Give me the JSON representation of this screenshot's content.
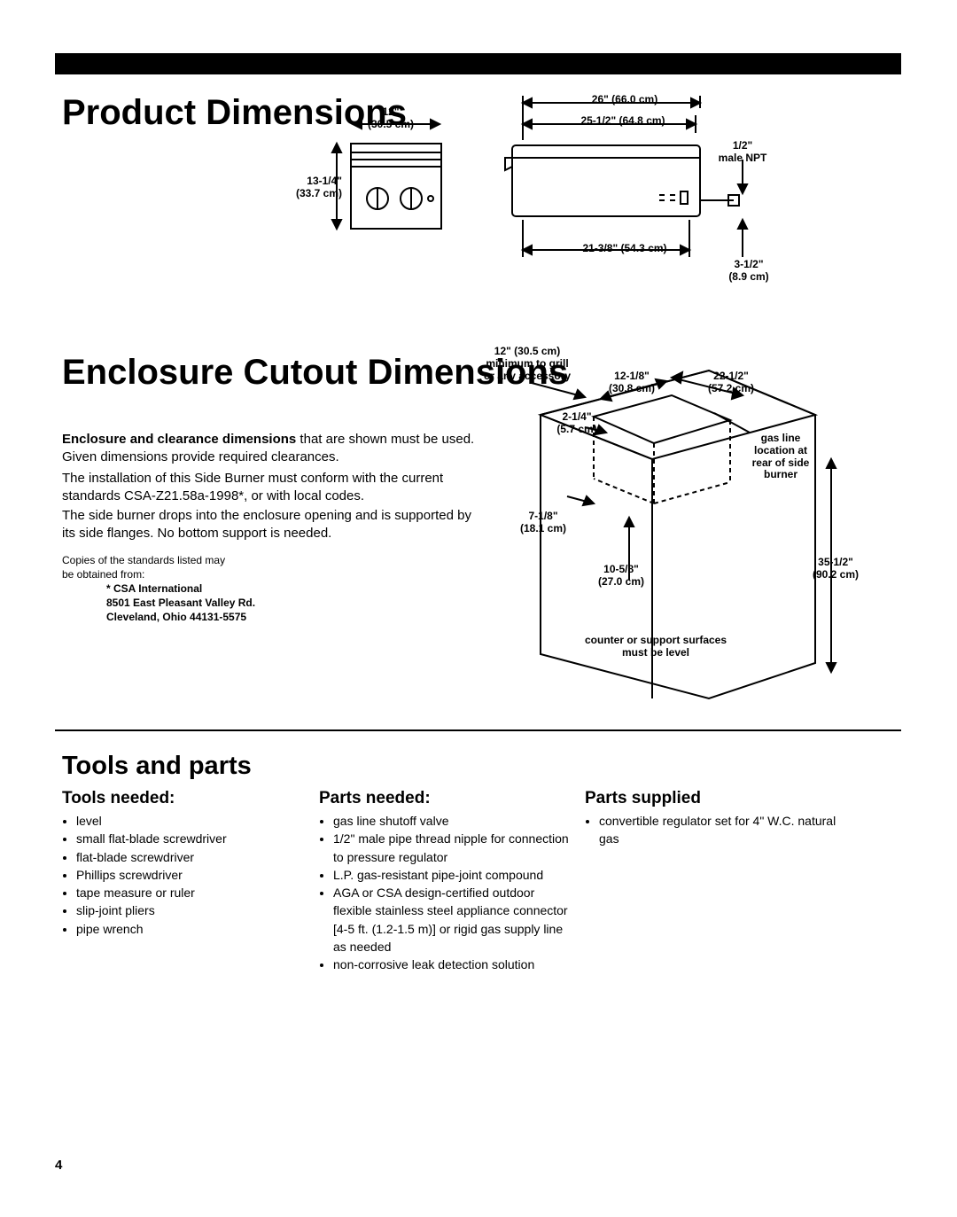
{
  "page_number": "4",
  "section1": {
    "title": "Product Dimensions",
    "diag_top": {
      "w_in": "12\"",
      "w_cm": "(30.5 cm)",
      "h_in": "13-1/4\"",
      "h_cm": "(33.7 cm)"
    },
    "diag_side": {
      "top_in": "26\" (66.0 cm)",
      "mid_in": "25-1/2\" (64.8 cm)",
      "bot_in": "21-3/8\" (54.3 cm)",
      "npt1": "1/2\"",
      "npt2": "male NPT",
      "gap_in": "3-1/2\"",
      "gap_cm": "(8.9 cm)"
    }
  },
  "section2": {
    "title": "Enclosure Cutout Dimensions",
    "p1_bold": "Enclosure and clearance dimensions",
    "p1_rest": " that are shown must be used. Given dimensions provide required clearances.",
    "p2": "The installation of this Side Burner must conform with the current standards CSA-Z21.58a-1998*, or with local codes.",
    "p3": "The side burner drops into the enclosure opening and is supported by its side flanges. No bottom support is needed.",
    "copies1": "Copies of the standards listed may",
    "copies2": "be obtained from:",
    "addr1": "* CSA International",
    "addr2": "8501 East Pleasant Valley Rd.",
    "addr3": "Cleveland, Ohio 44131-5575",
    "diag": {
      "min1": "12\" (30.5 cm)",
      "min2": "minimum to grill",
      "min3": "or any accessory",
      "d12a": "12-1/8\"",
      "d12b": "(30.8 cm)",
      "d22a": "22-1/2\"",
      "d22b": "(57.2 cm)",
      "d2a": "2-1/4\"",
      "d2b": "(5.7 cm)",
      "gas1": "gas line",
      "gas2": "location at",
      "gas3": "rear of side",
      "gas4": "burner",
      "d7a": "7-1/8\"",
      "d7b": "(18.1 cm)",
      "d10a": "10-5/8\"",
      "d10b": "(27.0 cm)",
      "d35a": "35-1/2\"",
      "d35b": "(90.2 cm)",
      "lvl1": "counter or support surfaces",
      "lvl2": "must be level"
    }
  },
  "section3": {
    "title": "Tools and parts",
    "col1_h": "Tools needed:",
    "col2_h": "Parts needed:",
    "col3_h": "Parts supplied",
    "tools": [
      "level",
      "small flat-blade screwdriver",
      "flat-blade screwdriver",
      "Phillips screwdriver",
      "tape measure or ruler",
      "slip-joint pliers",
      "pipe wrench"
    ],
    "parts_needed": [
      "gas line shutoff valve",
      "1/2\" male pipe thread nipple for connection to pressure regulator",
      "L.P. gas-resistant pipe-joint compound",
      "AGA or CSA design-certified outdoor flexible stainless steel appliance connector [4-5 ft. (1.2-1.5 m)] or rigid gas supply line as needed",
      "non-corrosive leak detection solution"
    ],
    "parts_supplied": [
      "convertible regulator set for 4\" W.C. natural gas"
    ]
  },
  "style": {
    "black": "#000000",
    "white": "#ffffff",
    "h1_fontsize": 40,
    "sub_fontsize": 19,
    "body_fontsize": 15,
    "tiny_fontsize": 12,
    "list_fontsize": 14
  }
}
